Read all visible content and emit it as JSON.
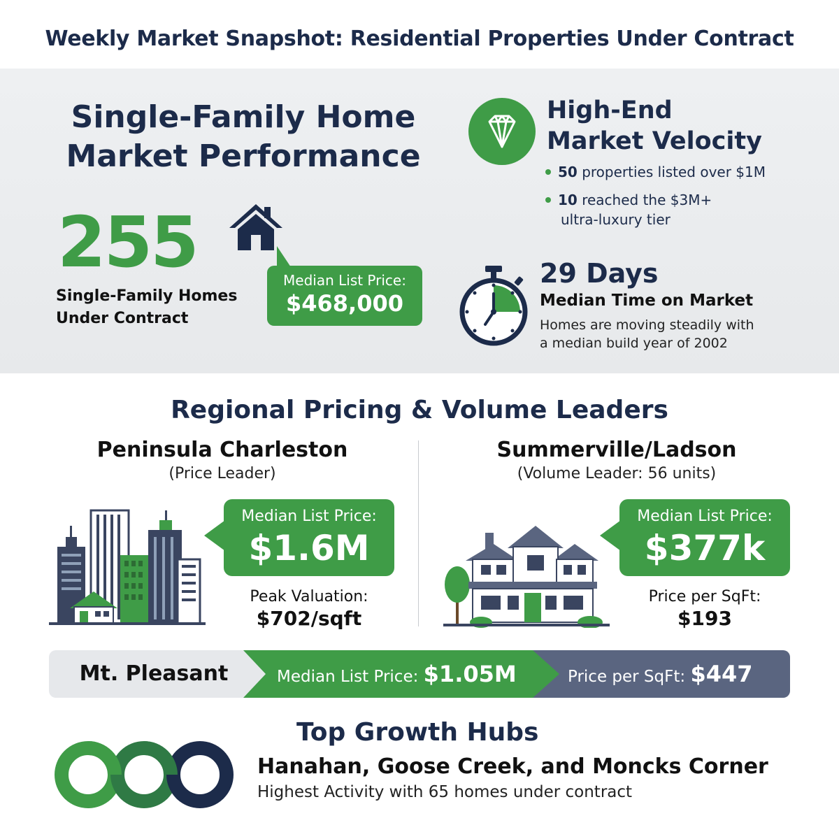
{
  "title": "Weekly Market Snapshot: Residential Properties Under Contract",
  "single_family": {
    "heading_line1": "Single-Family Home",
    "heading_line2": "Market Performance",
    "count": "255",
    "count_label_line1": "Single-Family Homes",
    "count_label_line2": "Under Contract",
    "price_label": "Median List Price:",
    "price_value": "$468,000"
  },
  "high_end": {
    "heading_line1": "High-End",
    "heading_line2": "Market Velocity",
    "bullet1_value": "50",
    "bullet1_text": " properties listed over $1M",
    "bullet2_value": "10",
    "bullet2_text": " reached the $3M+",
    "bullet2_cont": "ultra-luxury tier"
  },
  "time_on_market": {
    "value": "29 Days",
    "label": "Median Time on Market",
    "desc_line1": "Homes are moving steadily with",
    "desc_line2": "a median build year of 2002"
  },
  "regional": {
    "heading": "Regional Pricing & Volume Leaders",
    "peninsula": {
      "name": "Peninsula Charleston",
      "sub": "(Price Leader)",
      "price_label": "Median List Price:",
      "price_value": "$1.6M",
      "metric_label": "Peak Valuation:",
      "metric_value": "$702/sqft"
    },
    "summerville": {
      "name": "Summerville/Ladson",
      "sub": "(Volume Leader: 56 units)",
      "price_label": "Median List Price:",
      "price_value": "$377k",
      "metric_label": "Price per SqFt:",
      "metric_value": "$193"
    }
  },
  "mt_pleasant": {
    "name": "Mt. Pleasant",
    "price_label": "Median List Price: ",
    "price_value": "$1.05M",
    "sqft_label": "Price per SqFt: ",
    "sqft_value": "$447"
  },
  "growth": {
    "heading": "Top Growth Hubs",
    "places": "Hanahan, Goose Creek, and Moncks Corner",
    "desc": "Highest Activity with 65 homes under contract"
  },
  "colors": {
    "navy": "#1c2b4a",
    "green": "#3f9c47",
    "slate": "#5a6580"
  },
  "icons": [
    "house-icon",
    "diamond-icon",
    "stopwatch-icon",
    "city-buildings-icon",
    "suburban-house-icon",
    "rings-icon"
  ]
}
